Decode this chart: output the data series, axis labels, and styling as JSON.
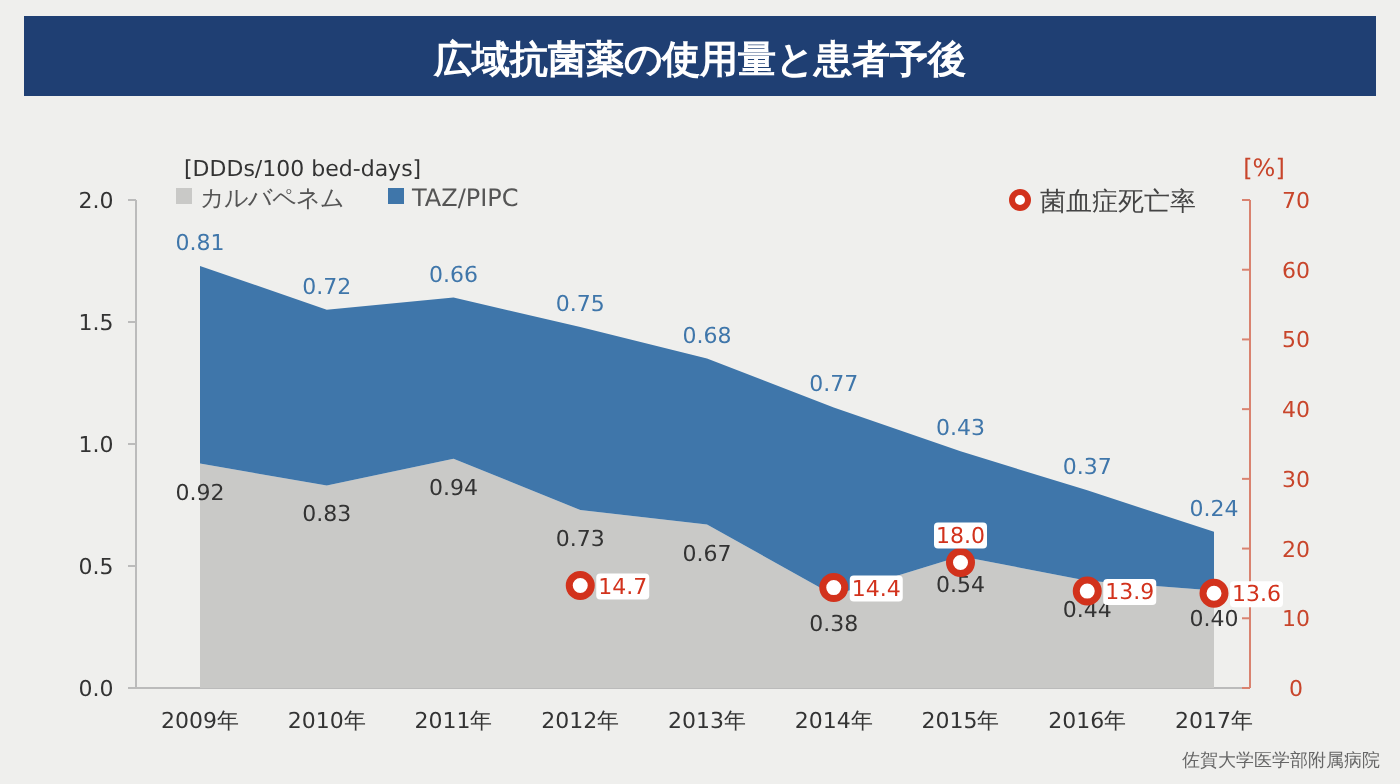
{
  "chart_data": {
    "type": "area",
    "title": "広域抗菌薬の使用量と患者予後",
    "ylabel": "[DDDs/100 bed-days]",
    "y2label": "[%]",
    "categories": [
      "2009年",
      "2010年",
      "2011年",
      "2012年",
      "2013年",
      "2014年",
      "2015年",
      "2016年",
      "2017年"
    ],
    "stacked": true,
    "legend": "top",
    "grid": false,
    "ylim": [
      0,
      2.0
    ],
    "yticks": [
      {
        "value": 0,
        "label": "0.0"
      },
      0.5,
      {
        "value": 1,
        "label": "1.0"
      },
      1.5,
      {
        "value": 2,
        "label": "2.0"
      }
    ],
    "y2lim": [
      0,
      70
    ],
    "y2ticks": [
      0,
      10,
      20,
      30,
      40,
      50,
      60,
      70
    ],
    "series": [
      {
        "name": "カルバペネム",
        "color": "#c9c9c7",
        "values": [
          0.92,
          0.83,
          0.94,
          0.73,
          0.67,
          0.38,
          0.54,
          0.44,
          0.4
        ],
        "value_labels": [
          "0.92",
          "0.83",
          "0.94",
          "0.73",
          "0.67",
          "0.38",
          "0.54",
          "0.44",
          "0.40"
        ]
      },
      {
        "name": "TAZ/PIPC",
        "color": "#3f76aa",
        "values": [
          0.81,
          0.72,
          0.66,
          0.75,
          0.68,
          0.77,
          0.43,
          0.37,
          0.24
        ],
        "value_labels": [
          "0.81",
          "0.72",
          "0.66",
          "0.75",
          "0.68",
          "0.77",
          "0.43",
          "0.37",
          "0.24"
        ]
      },
      {
        "name": "菌血症死亡率",
        "type": "scatter",
        "axis": "y2",
        "color": "#d2321c",
        "marker": "circle",
        "x": [
          "2012年",
          "2014年",
          "2015年",
          "2016年",
          "2017年"
        ],
        "values": [
          14.7,
          14.4,
          18.0,
          13.9,
          13.6
        ],
        "value_labels": [
          "14.7",
          "14.4",
          "18.0",
          "13.9",
          "13.6"
        ]
      }
    ],
    "annotations": [
      "佐賀大学医学部附属病院"
    ]
  }
}
